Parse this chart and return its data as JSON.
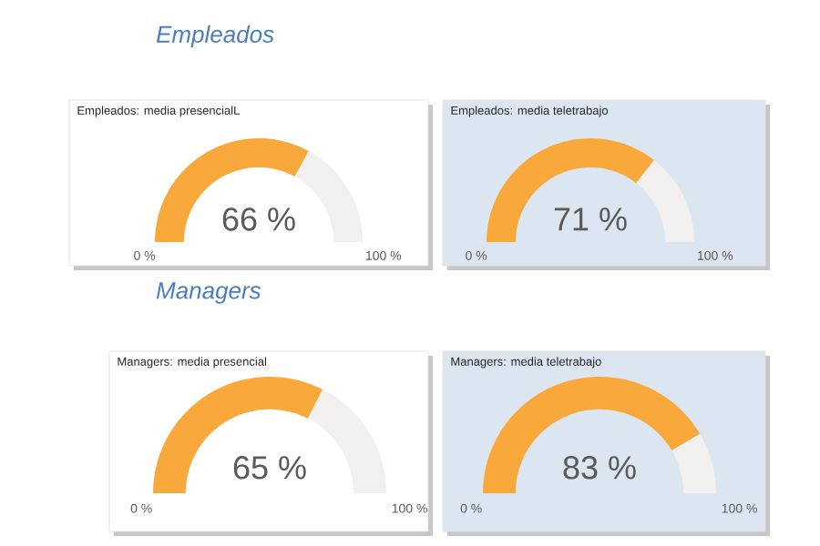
{
  "chart_data": [
    {
      "type": "other",
      "title": "Empleados"
    },
    {
      "type": "donut",
      "title": "Empleados: media presencialL",
      "categories": [
        null,
        null
      ],
      "values": [
        66,
        34
      ],
      "colors": [
        "#f9a93b",
        "#f1f0ee"
      ],
      "value_labels": [
        "66 %",
        null
      ],
      "annotations": [
        "0 %",
        "100 %"
      ]
    },
    {
      "type": "donut",
      "title": "Empleados: media teletrabajo",
      "categories": [
        null,
        null
      ],
      "values": [
        71,
        29
      ],
      "colors": [
        "#f9a93b",
        "#f1f0ee"
      ],
      "value_labels": [
        "71 %",
        null
      ],
      "annotations": [
        "0 %",
        "100 %"
      ]
    },
    {
      "type": "other",
      "title": "Managers"
    },
    {
      "type": "donut",
      "title": "Managers: media presencial",
      "categories": [
        null,
        null
      ],
      "values": [
        65,
        35
      ],
      "colors": [
        "#f9a93b",
        "#f1f0ee"
      ],
      "value_labels": [
        "65 %",
        null
      ],
      "annotations": [
        "0 %",
        "100 %"
      ]
    },
    {
      "type": "donut",
      "title": "Managers: media teletrabajo",
      "categories": [
        null,
        null
      ],
      "values": [
        83,
        17
      ],
      "colors": [
        "#f9a93b",
        "#f1f0ee"
      ],
      "value_labels": [
        "83 %",
        null
      ],
      "annotations": [
        "0 %",
        "100 %"
      ]
    }
  ]
}
